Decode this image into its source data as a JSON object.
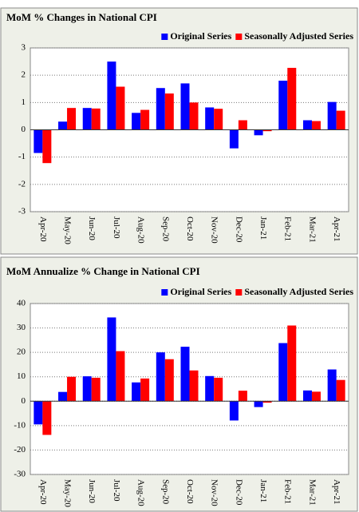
{
  "chart_data": [
    {
      "type": "bar",
      "title": "MoM % Changes in National CPI",
      "categories": [
        "Apr-20",
        "May-20",
        "Jun-20",
        "Jul-20",
        "Aug-20",
        "Sep-20",
        "Oct-20",
        "Nov-20",
        "Dec-20",
        "Jan-21",
        "Feb-21",
        "Mar-21",
        "Apr-21"
      ],
      "series": [
        {
          "name": "Original Series",
          "color": "#0000ff",
          "values": [
            -0.85,
            0.3,
            0.8,
            2.5,
            0.62,
            1.53,
            1.7,
            0.82,
            -0.68,
            -0.2,
            1.8,
            0.35,
            1.02
          ]
        },
        {
          "name": "Seasonally Adjusted Series",
          "color": "#ff0000",
          "values": [
            -1.22,
            0.8,
            0.78,
            1.58,
            0.73,
            1.33,
            1.0,
            0.77,
            0.35,
            -0.05,
            2.27,
            0.32,
            0.7
          ]
        }
      ],
      "ylim": [
        -3,
        3
      ],
      "yticks": [
        -3,
        -2,
        -1,
        0,
        1,
        2,
        3
      ],
      "grid": true,
      "legend": "top-right"
    },
    {
      "type": "bar",
      "title": "MoM Annualize % Change in National CPI",
      "categories": [
        "Apr-20",
        "May-20",
        "Jun-20",
        "Jul-20",
        "Aug-20",
        "Sep-20",
        "Oct-20",
        "Nov-20",
        "Dec-20",
        "Jan-21",
        "Feb-21",
        "Mar-21",
        "Apr-21"
      ],
      "series": [
        {
          "name": "Original Series",
          "color": "#0000ff",
          "values": [
            -9.5,
            3.8,
            10.2,
            34.3,
            7.7,
            20,
            22.3,
            10.3,
            -7.9,
            -2.4,
            23.8,
            4.4,
            13
          ]
        },
        {
          "name": "Seasonally Adjusted Series",
          "color": "#ff0000",
          "values": [
            -13.8,
            10,
            9.6,
            20.5,
            9.3,
            17.2,
            12.6,
            9.6,
            4.3,
            -0.6,
            31,
            3.9,
            8.7
          ]
        }
      ],
      "ylim": [
        -30,
        40
      ],
      "yticks": [
        -30,
        -20,
        -10,
        0,
        10,
        20,
        30,
        40
      ],
      "grid": true,
      "legend": "top-right"
    }
  ]
}
